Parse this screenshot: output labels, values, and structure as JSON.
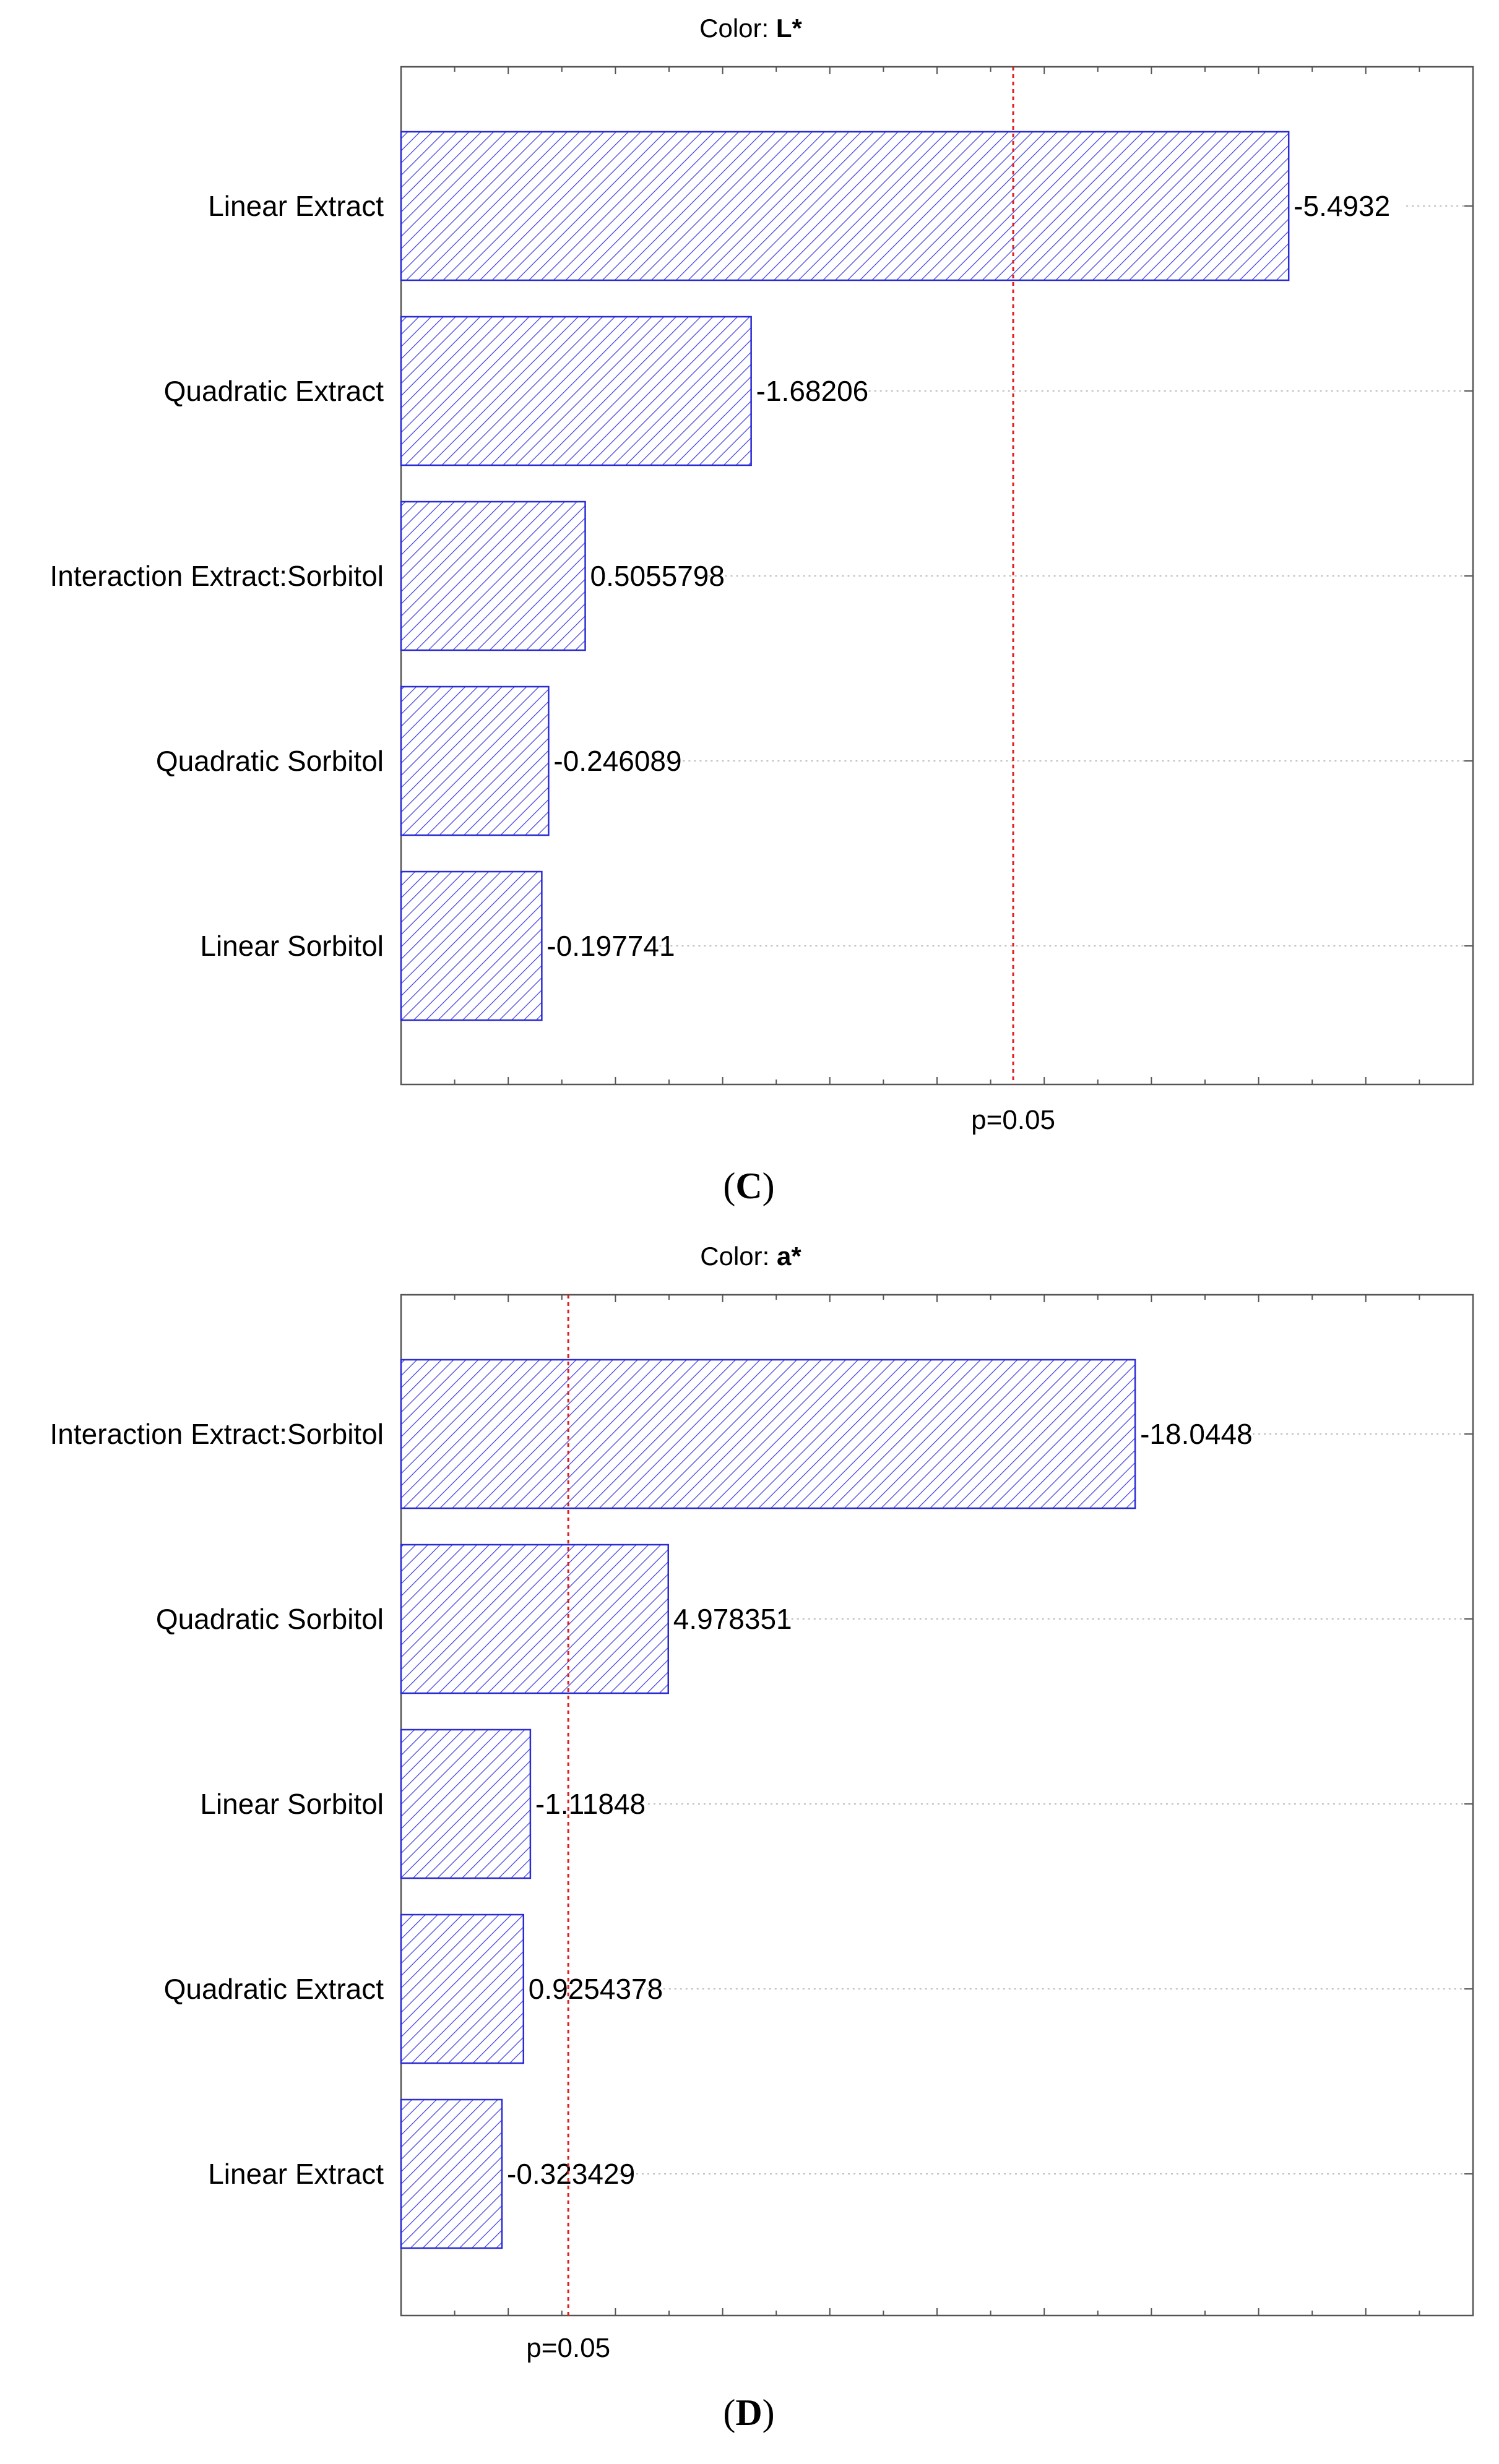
{
  "chart_data": [
    {
      "type": "bar",
      "orientation": "horizontal",
      "panel_label": "C",
      "title_prefix": "Color:",
      "title_bold": "L*",
      "categories": [
        "Linear Extract",
        "Quadratic Extract",
        "Interaction Extract:Sorbitol",
        "Quadratic Sorbitol",
        "Linear Sorbitol"
      ],
      "values": [
        5.4932,
        1.68206,
        0.5055798,
        0.246089,
        0.197741
      ],
      "value_labels": [
        "-5.4932",
        "-1.68206",
        "0.5055798",
        "-0.246089",
        "-0.197741"
      ],
      "reference_line": {
        "label": "p=0.05",
        "value": 3.54
      },
      "xlim": [
        -0.8,
        6.8
      ],
      "grid": "horizontal dotted",
      "colors": {
        "bar_edge": "#2b2bd6",
        "hatch": "#3a3ae0",
        "reference": "#e01a1a",
        "grid": "#bdbdbd"
      }
    },
    {
      "type": "bar",
      "orientation": "horizontal",
      "panel_label": "D",
      "title_prefix": "Color:",
      "title_bold": "a*",
      "categories": [
        "Interaction Extract:Sorbitol",
        "Quadratic Sorbitol",
        "Linear Sorbitol",
        "Quadratic Extract",
        "Linear Extract"
      ],
      "values": [
        18.0448,
        4.978351,
        1.11848,
        0.9254378,
        0.323429
      ],
      "value_labels": [
        "-18.0448",
        "4.978351",
        "-1.11848",
        "0.9254378",
        "-0.323429"
      ],
      "reference_line": {
        "label": "p=0.05",
        "value": 2.18
      },
      "xlim": [
        -2.5,
        27.5
      ],
      "grid": "horizontal dotted",
      "colors": {
        "bar_edge": "#2b2bd6",
        "hatch": "#3a3ae0",
        "reference": "#e01a1a",
        "grid": "#bdbdbd"
      }
    }
  ]
}
